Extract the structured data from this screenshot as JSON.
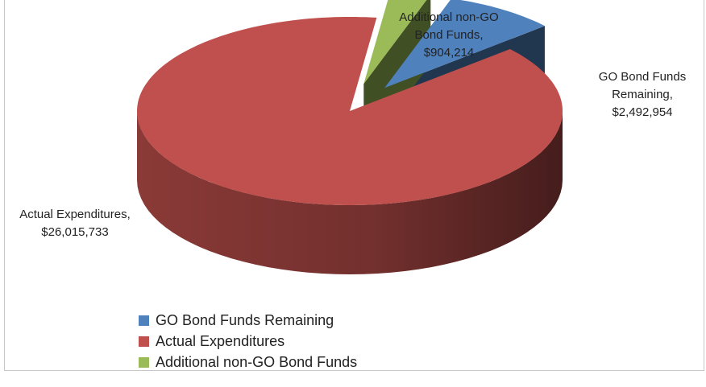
{
  "chart_data": {
    "type": "pie",
    "style": "3d-exploded",
    "title": "",
    "slices": [
      {
        "name": "GO Bond Funds Remaining",
        "value": 2492954,
        "value_label": "$2,492,954",
        "color": "#4f81bd",
        "exploded": true
      },
      {
        "name": "Actual Expenditures",
        "value": 26015733,
        "value_label": "$26,015,733",
        "color": "#c0504d",
        "exploded": false
      },
      {
        "name": "Additional non-GO Bond Funds",
        "value": 904214,
        "value_label": "$904,214",
        "color": "#9bbb59",
        "exploded": true
      }
    ],
    "data_labels": [
      {
        "lines": [
          "GO Bond Funds",
          "Remaining,",
          "$2,492,954"
        ]
      },
      {
        "lines": [
          "Actual Expenditures,",
          "$26,015,733"
        ]
      },
      {
        "lines": [
          "Additional non-GO",
          "Bond Funds,",
          "$904,214"
        ]
      }
    ],
    "legend": {
      "position": "bottom-left",
      "entries": [
        "GO Bond Funds Remaining",
        "Actual Expenditures",
        "Additional non-GO Bond Funds"
      ]
    }
  }
}
